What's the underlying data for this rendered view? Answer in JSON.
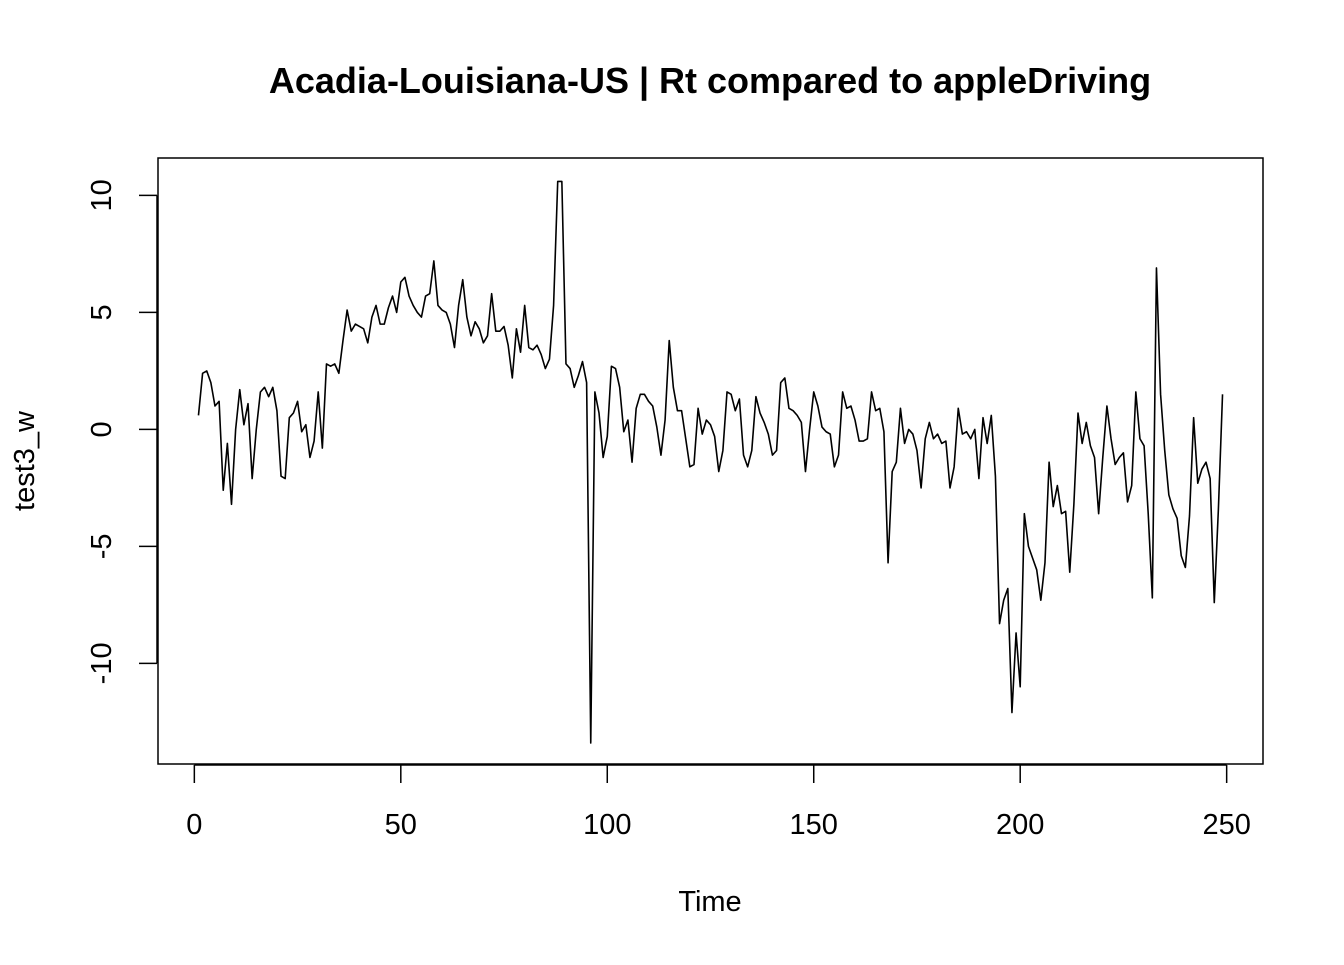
{
  "chart_data": {
    "type": "line",
    "title": "Acadia-Louisiana-US | Rt compared to appleDriving",
    "xlabel": "Time",
    "ylabel": "test3_w",
    "xlim": [
      -8.8,
      258.8
    ],
    "ylim": [
      -14.3,
      11.6
    ],
    "x_ticks": [
      0,
      50,
      100,
      150,
      200,
      250
    ],
    "y_ticks": [
      -10,
      -5,
      0,
      5,
      10
    ],
    "x_tick_labels": [
      "0",
      "50",
      "100",
      "150",
      "200",
      "250"
    ],
    "y_tick_labels": [
      "-10",
      "-5",
      "0",
      "5",
      "10"
    ],
    "grid": false,
    "line_color": "#000000",
    "series": [
      {
        "x_start": 1,
        "values": [
          0.6,
          2.4,
          2.5,
          2.0,
          1.0,
          1.2,
          -2.6,
          -0.6,
          -3.2,
          0.0,
          1.7,
          0.2,
          1.1,
          -2.1,
          0.0,
          1.6,
          1.8,
          1.4,
          1.8,
          0.8,
          -2.0,
          -2.1,
          0.5,
          0.7,
          1.2,
          -0.1,
          0.2,
          -1.2,
          -0.5,
          1.6,
          -0.8,
          2.8,
          2.7,
          2.8,
          2.4,
          3.8,
          5.1,
          4.2,
          4.5,
          4.4,
          4.3,
          3.7,
          4.8,
          5.3,
          4.5,
          4.5,
          5.2,
          5.7,
          5.0,
          6.3,
          6.5,
          5.7,
          5.3,
          5.0,
          4.8,
          5.7,
          5.8,
          7.2,
          5.3,
          5.1,
          5.0,
          4.5,
          3.5,
          5.3,
          6.4,
          4.8,
          4.0,
          4.6,
          4.3,
          3.7,
          4.0,
          5.8,
          4.2,
          4.2,
          4.4,
          3.6,
          2.2,
          4.3,
          3.3,
          5.3,
          3.5,
          3.4,
          3.6,
          3.2,
          2.6,
          3.0,
          5.3,
          10.6,
          10.6,
          2.8,
          2.6,
          1.8,
          2.3,
          2.9,
          2.0,
          -13.4,
          1.6,
          0.7,
          -1.2,
          -0.3,
          2.7,
          2.6,
          1.8,
          -0.1,
          0.4,
          -1.4,
          0.9,
          1.5,
          1.5,
          1.2,
          1.0,
          0.1,
          -1.1,
          0.4,
          3.8,
          1.8,
          0.8,
          0.8,
          -0.4,
          -1.6,
          -1.5,
          0.9,
          -0.2,
          0.4,
          0.2,
          -0.3,
          -1.8,
          -0.9,
          1.6,
          1.5,
          0.8,
          1.3,
          -1.1,
          -1.6,
          -0.9,
          1.4,
          0.7,
          0.3,
          -0.2,
          -1.1,
          -0.9,
          2.0,
          2.2,
          0.9,
          0.8,
          0.6,
          0.3,
          -1.8,
          0.0,
          1.6,
          1.0,
          0.1,
          -0.1,
          -0.2,
          -1.6,
          -1.1,
          1.6,
          0.9,
          1.0,
          0.4,
          -0.5,
          -0.5,
          -0.4,
          1.6,
          0.8,
          0.9,
          -0.1,
          -5.7,
          -1.8,
          -1.4,
          0.9,
          -0.6,
          0.0,
          -0.2,
          -0.9,
          -2.5,
          -0.4,
          0.3,
          -0.4,
          -0.2,
          -0.6,
          -0.5,
          -2.5,
          -1.6,
          0.9,
          -0.2,
          -0.1,
          -0.4,
          0.0,
          -2.1,
          0.5,
          -0.6,
          0.6,
          -2.0,
          -8.3,
          -7.3,
          -6.8,
          -12.1,
          -8.7,
          -11.0,
          -3.6,
          -5.0,
          -5.5,
          -6.0,
          -7.3,
          -5.7,
          -1.4,
          -3.3,
          -2.4,
          -3.6,
          -3.5,
          -6.1,
          -3.2,
          0.7,
          -0.6,
          0.3,
          -0.7,
          -1.2,
          -3.6,
          -1.2,
          1.0,
          -0.4,
          -1.5,
          -1.2,
          -1.0,
          -3.1,
          -2.4,
          1.6,
          -0.4,
          -0.7,
          -3.6,
          -7.2,
          6.9,
          1.5,
          -0.9,
          -2.8,
          -3.4,
          -3.8,
          -5.4,
          -5.9,
          -3.7,
          0.5,
          -2.3,
          -1.7,
          -1.4,
          -2.1,
          -7.4,
          -3.4,
          1.5
        ]
      }
    ]
  }
}
